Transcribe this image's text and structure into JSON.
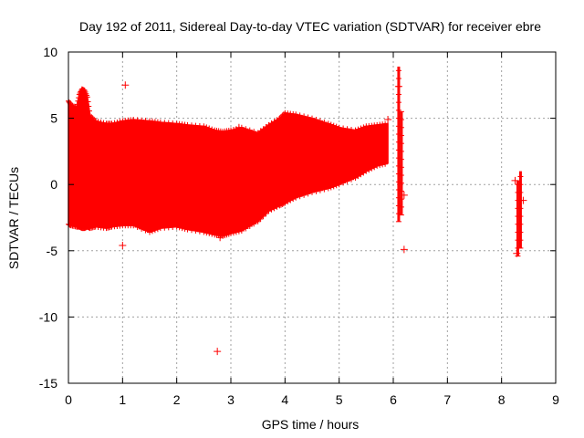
{
  "chart_data": {
    "type": "scatter",
    "title": "Day 192 of 2011, Sidereal Day-to-day VTEC variation (SDTVAR) for receiver ebre",
    "xlabel": "GPS time / hours",
    "ylabel": "SDTVAR / TECUs",
    "xlim": [
      0,
      9
    ],
    "ylim": [
      -15,
      10
    ],
    "xticks": [
      0,
      1,
      2,
      3,
      4,
      5,
      6,
      7,
      8,
      9
    ],
    "yticks": [
      -15,
      -10,
      -5,
      0,
      5,
      10
    ],
    "grid": true,
    "series": [
      {
        "name": "SDTVAR",
        "color": "#ff0000",
        "marker": "plus",
        "envelope": {
          "x": [
            0.0,
            0.05,
            0.15,
            0.2,
            0.25,
            0.3,
            0.35,
            0.4,
            0.5,
            0.7,
            0.8,
            1.0,
            1.2,
            1.5,
            1.7,
            2.0,
            2.2,
            2.5,
            2.7,
            2.85,
            3.0,
            3.2,
            3.5,
            3.7,
            3.9,
            4.0,
            4.2,
            4.5,
            4.8,
            5.0,
            5.3,
            5.5,
            5.7,
            5.9
          ],
          "upper": [
            6.3,
            6.0,
            5.8,
            6.8,
            7.2,
            7.1,
            6.6,
            5.2,
            4.8,
            4.6,
            4.6,
            4.8,
            4.9,
            4.8,
            4.7,
            4.6,
            4.5,
            4.4,
            4.1,
            4.0,
            4.1,
            4.3,
            3.9,
            4.5,
            5.0,
            5.4,
            5.3,
            5.0,
            4.6,
            4.3,
            4.1,
            4.4,
            4.5,
            4.6
          ],
          "lower": [
            -3.0,
            -3.1,
            -3.2,
            -3.2,
            -3.3,
            -3.3,
            -3.2,
            -3.3,
            -3.2,
            -3.3,
            -3.2,
            -3.1,
            -3.1,
            -3.6,
            -3.3,
            -3.2,
            -3.4,
            -3.6,
            -3.8,
            -3.9,
            -3.7,
            -3.5,
            -2.8,
            -2.0,
            -1.6,
            -1.4,
            -1.0,
            -0.6,
            -0.3,
            0.0,
            0.5,
            1.0,
            1.4,
            1.6
          ]
        },
        "stripes": [
          {
            "x": 6.1,
            "ymin": -2.8,
            "ymax": 8.9
          },
          {
            "x": 6.15,
            "ymin": -2.3,
            "ymax": 5.5
          },
          {
            "x": 8.3,
            "ymin": -5.4,
            "ymax": 0.3
          },
          {
            "x": 8.35,
            "ymin": -4.8,
            "ymax": 1.0
          }
        ],
        "outliers": [
          {
            "x": 1.05,
            "y": 7.5
          },
          {
            "x": 1.0,
            "y": -4.6
          },
          {
            "x": 2.75,
            "y": -12.6
          },
          {
            "x": 3.15,
            "y": 4.3
          },
          {
            "x": 2.8,
            "y": -4.0
          },
          {
            "x": 5.9,
            "y": 4.9
          },
          {
            "x": 6.2,
            "y": -4.9
          },
          {
            "x": 6.1,
            "y": 7.4
          },
          {
            "x": 8.25,
            "y": 0.3
          },
          {
            "x": 8.4,
            "y": -1.2
          },
          {
            "x": 6.2,
            "y": -0.8
          },
          {
            "x": 8.28,
            "y": -5.2
          }
        ]
      }
    ]
  }
}
